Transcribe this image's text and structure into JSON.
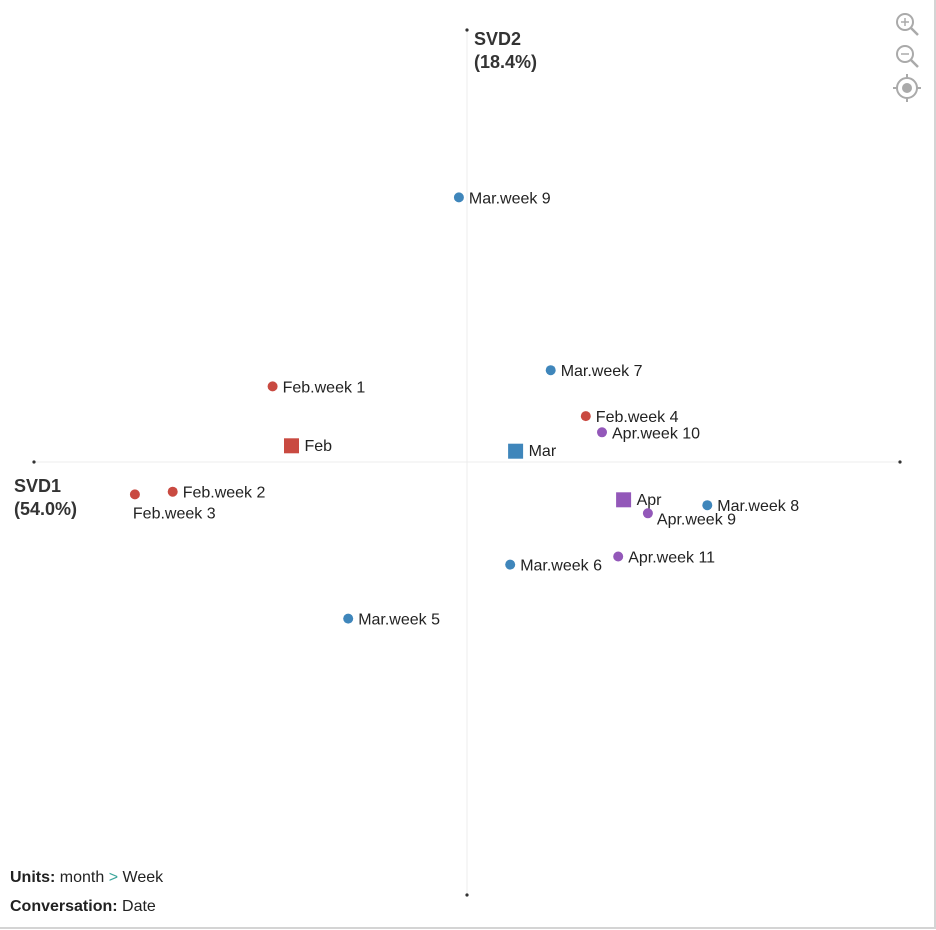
{
  "chart_data": {
    "type": "scatter",
    "title": "",
    "xlabel": "SVD1",
    "xlabel_pct": "(54.0%)",
    "ylabel": "SVD2",
    "ylabel_pct": "(18.4%)",
    "xlim": [
      -1.6,
      1.6
    ],
    "ylim": [
      -1.6,
      1.6
    ],
    "grid": false,
    "colors": {
      "Feb": "#c94a41",
      "Mar": "#3f86bb",
      "Apr": "#9358b9"
    },
    "months": [
      {
        "name": "Feb",
        "x": -0.65,
        "y": 0.06
      },
      {
        "name": "Mar",
        "x": 0.18,
        "y": 0.04
      },
      {
        "name": "Apr",
        "x": 0.58,
        "y": -0.14
      }
    ],
    "points": [
      {
        "label": "Feb.week 1",
        "group": "Feb",
        "x": -0.72,
        "y": 0.28
      },
      {
        "label": "Feb.week 2",
        "group": "Feb",
        "x": -1.09,
        "y": -0.11
      },
      {
        "label": "Feb.week 3",
        "group": "Feb",
        "x": -1.23,
        "y": -0.12
      },
      {
        "label": "Feb.week 4",
        "group": "Feb",
        "x": 0.44,
        "y": 0.17
      },
      {
        "label": "Mar.week 5",
        "group": "Mar",
        "x": -0.44,
        "y": -0.58
      },
      {
        "label": "Mar.week 6",
        "group": "Mar",
        "x": 0.16,
        "y": -0.38
      },
      {
        "label": "Mar.week 7",
        "group": "Mar",
        "x": 0.31,
        "y": 0.34
      },
      {
        "label": "Mar.week 8",
        "group": "Mar",
        "x": 0.89,
        "y": -0.16
      },
      {
        "label": "Mar.week 9",
        "group": "Mar",
        "x": -0.03,
        "y": 0.98
      },
      {
        "label": "Apr.week 9",
        "group": "Apr",
        "x": 0.67,
        "y": -0.19
      },
      {
        "label": "Apr.week 10",
        "group": "Apr",
        "x": 0.5,
        "y": 0.11
      },
      {
        "label": "Apr.week 11",
        "group": "Apr",
        "x": 0.56,
        "y": -0.35
      }
    ]
  },
  "toolbar": {
    "zoom_in_icon": "zoom-in-icon",
    "zoom_out_icon": "zoom-out-icon",
    "recenter_icon": "recenter-icon"
  },
  "footer": {
    "units_label": "Units:",
    "units_value": "month",
    "units_separator": ">",
    "units_sub": "Week",
    "conversation_label": "Conversation:",
    "conversation_value": "Date"
  }
}
